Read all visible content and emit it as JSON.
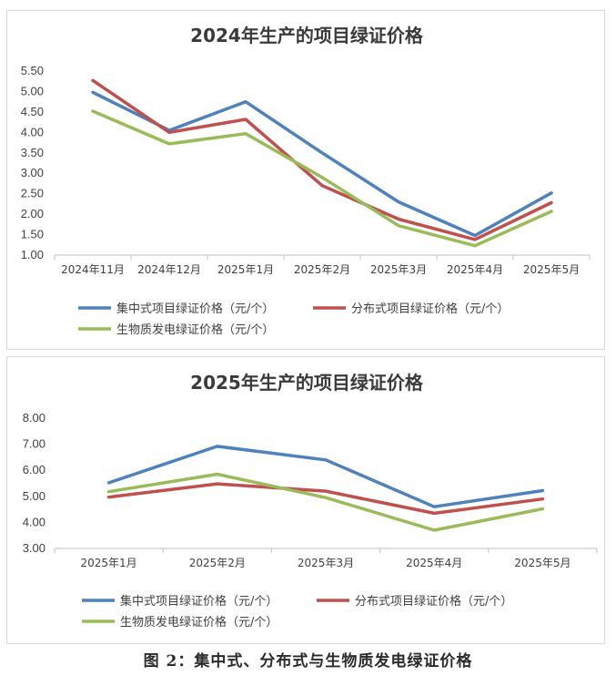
{
  "chart_data": [
    {
      "type": "line",
      "title": "2024年生产的项目绿证价格",
      "categories": [
        "2024年11月",
        "2024年12月",
        "2025年1月",
        "2025年2月",
        "2025年3月",
        "2025年4月",
        "2025年5月"
      ],
      "ylim": [
        1.0,
        5.5
      ],
      "yticks": [
        "1.00",
        "1.50",
        "2.00",
        "2.50",
        "3.00",
        "3.50",
        "4.00",
        "4.50",
        "5.00",
        "5.50"
      ],
      "grid": false,
      "legend": "bottom",
      "series": [
        {
          "name": "集中式项目绿证价格（元/个）",
          "color": "#4f81bd",
          "values": [
            4.98,
            4.05,
            4.75,
            3.5,
            2.3,
            1.48,
            2.52
          ]
        },
        {
          "name": "分布式项目绿证价格（元/个）",
          "color": "#c0504d",
          "values": [
            5.27,
            4.0,
            4.32,
            2.7,
            1.88,
            1.38,
            2.28
          ]
        },
        {
          "name": "生物质发电绿证价格（元/个）",
          "color": "#9bbb59",
          "values": [
            4.52,
            3.72,
            3.97,
            2.9,
            1.72,
            1.23,
            2.07
          ]
        }
      ]
    },
    {
      "type": "line",
      "title": "2025年生产的项目绿证价格",
      "categories": [
        "2025年1月",
        "2025年2月",
        "2025年3月",
        "2025年4月",
        "2025年5月"
      ],
      "ylim": [
        3.0,
        8.0
      ],
      "yticks": [
        "3.00",
        "4.00",
        "5.00",
        "6.00",
        "7.00",
        "8.00"
      ],
      "grid": false,
      "legend": "bottom",
      "series": [
        {
          "name": "集中式项目绿证价格（元/个）",
          "color": "#4f81bd",
          "values": [
            5.52,
            6.92,
            6.4,
            4.6,
            5.22
          ]
        },
        {
          "name": "分布式项目绿证价格（元/个）",
          "color": "#c0504d",
          "values": [
            4.97,
            5.48,
            5.2,
            4.35,
            4.9
          ]
        },
        {
          "name": "生物质发电绿证价格（元/个）",
          "color": "#9bbb59",
          "values": [
            5.18,
            5.85,
            4.95,
            3.7,
            4.52
          ]
        }
      ]
    }
  ],
  "caption": "图 2：集中式、分布式与生物质发电绿证价格"
}
